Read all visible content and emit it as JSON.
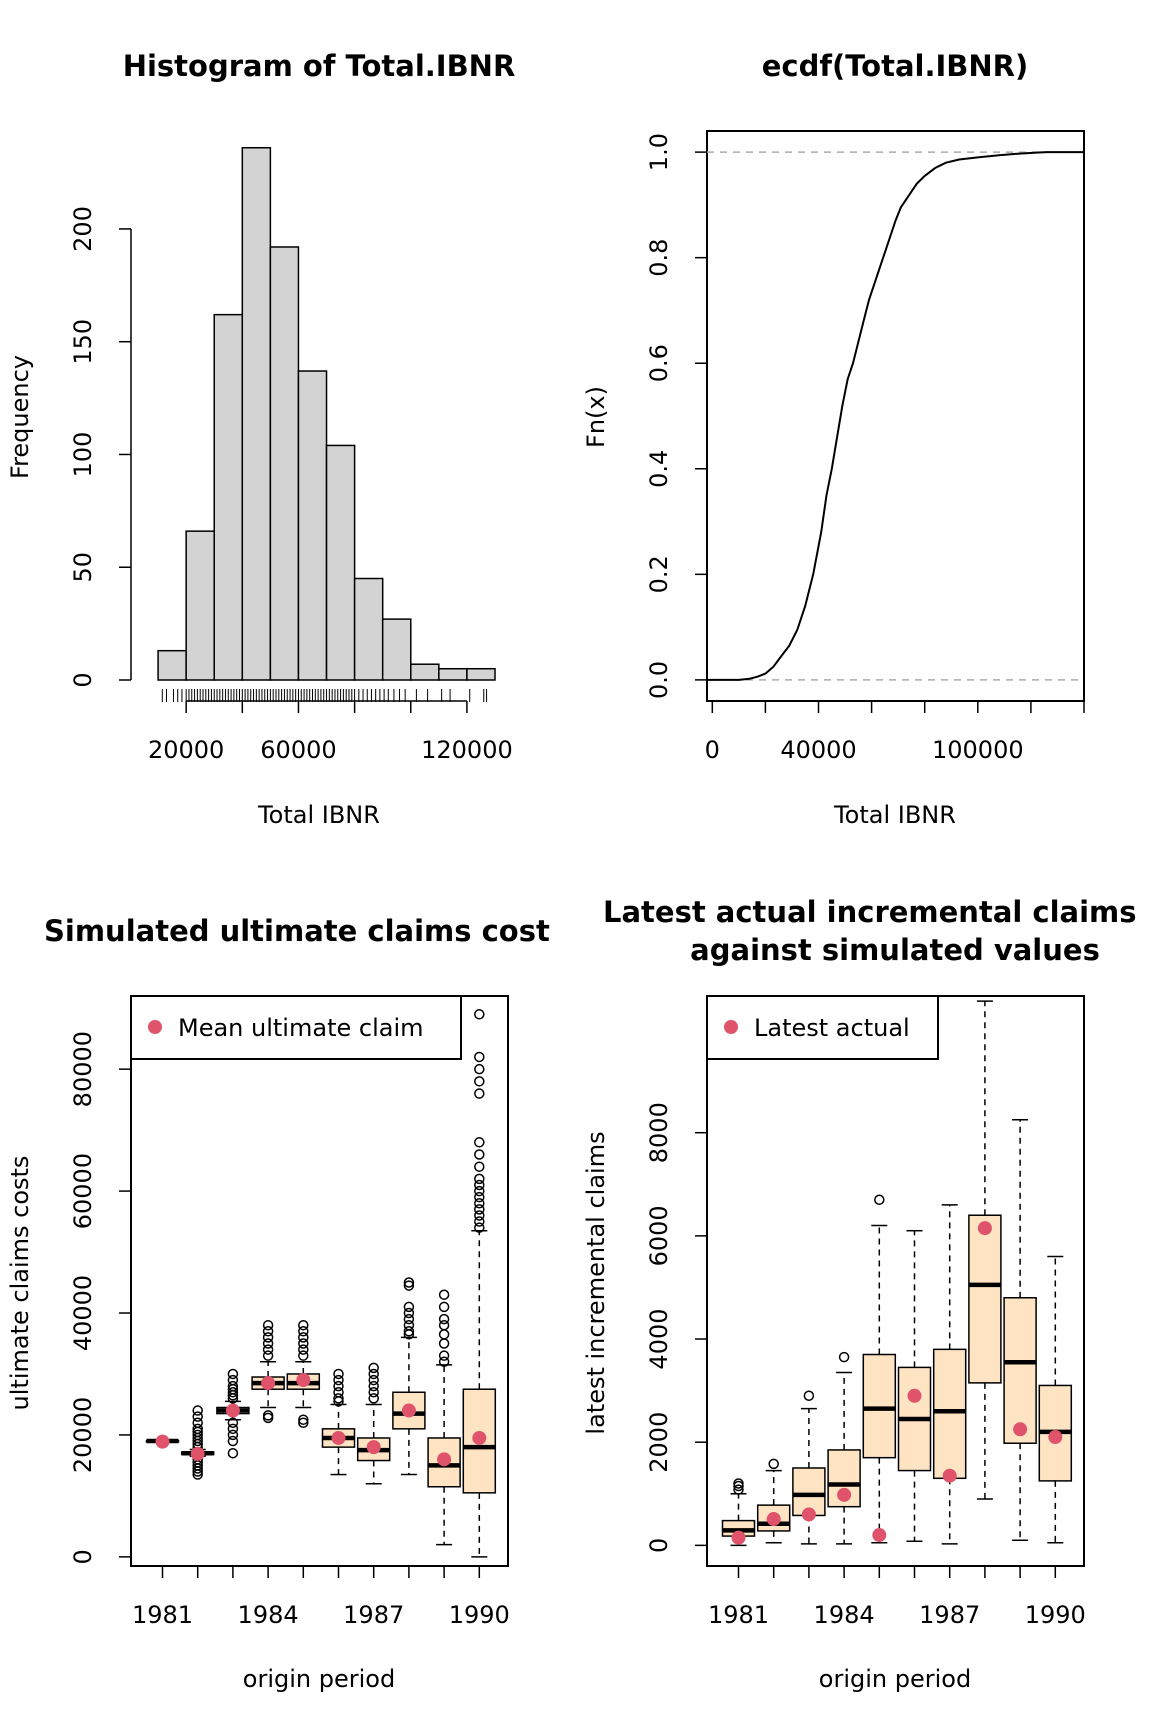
{
  "chart_data": [
    {
      "type": "histogram",
      "title": "Histogram of Total.IBNR",
      "xlabel": "Total IBNR",
      "ylabel": "Frequency",
      "xticks": [
        20000,
        60000,
        120000
      ],
      "yticks": [
        0,
        50,
        100,
        150,
        200
      ],
      "xlim": [
        0,
        130000
      ],
      "ylim": [
        0,
        235
      ],
      "bins": [
        {
          "from": 10000,
          "to": 20000,
          "count": 13
        },
        {
          "from": 20000,
          "to": 30000,
          "count": 66
        },
        {
          "from": 30000,
          "to": 40000,
          "count": 162
        },
        {
          "from": 40000,
          "to": 50000,
          "count": 236
        },
        {
          "from": 50000,
          "to": 60000,
          "count": 192
        },
        {
          "from": 60000,
          "to": 70000,
          "count": 137
        },
        {
          "from": 70000,
          "to": 80000,
          "count": 104
        },
        {
          "from": 80000,
          "to": 90000,
          "count": 45
        },
        {
          "from": 90000,
          "to": 100000,
          "count": 27
        },
        {
          "from": 100000,
          "to": 110000,
          "count": 7
        },
        {
          "from": 110000,
          "to": 120000,
          "count": 5
        },
        {
          "from": 120000,
          "to": 130000,
          "count": 5
        }
      ],
      "rug": [
        11500,
        13000,
        15500,
        17000,
        18500,
        20000,
        21000,
        22000,
        23000,
        24000,
        25000,
        26000,
        27000,
        28000,
        29000,
        30000,
        31000,
        32000,
        33000,
        34000,
        35000,
        36000,
        37000,
        38000,
        39000,
        40000,
        41000,
        42000,
        43000,
        44000,
        45000,
        46000,
        47000,
        48000,
        49000,
        50000,
        51000,
        52000,
        53000,
        54000,
        55000,
        56000,
        57000,
        58000,
        59000,
        60000,
        61000,
        62000,
        63000,
        64000,
        65000,
        66000,
        67000,
        68000,
        69000,
        70000,
        71000,
        72000,
        73000,
        74000,
        75000,
        76000,
        77000,
        78000,
        79000,
        80000,
        81500,
        83000,
        84500,
        86000,
        87500,
        89000,
        90500,
        92000,
        94000,
        96000,
        98000,
        102000,
        106000,
        111000,
        114000,
        121000,
        126000,
        127000
      ]
    },
    {
      "type": "ecdf",
      "title": "ecdf(Total.IBNR)",
      "xlabel": "Total IBNR",
      "ylabel": "Fn(x)",
      "xticks": [
        0,
        40000,
        100000
      ],
      "xminor": [
        20000,
        60000,
        80000,
        120000,
        140000
      ],
      "yticks": [
        0.0,
        0.2,
        0.4,
        0.6,
        0.8,
        1.0
      ],
      "ytick_labels": [
        "0.0",
        "0.2",
        "0.4",
        "0.6",
        "0.8",
        "1.0"
      ],
      "xlim": [
        -2000,
        140000
      ],
      "ylim": [
        -0.04,
        1.04
      ],
      "points": [
        [
          -2000,
          0
        ],
        [
          10000,
          0
        ],
        [
          14000,
          0.002
        ],
        [
          17000,
          0.006
        ],
        [
          20000,
          0.012
        ],
        [
          23000,
          0.025
        ],
        [
          26000,
          0.045
        ],
        [
          29000,
          0.065
        ],
        [
          32000,
          0.095
        ],
        [
          35000,
          0.14
        ],
        [
          38000,
          0.2
        ],
        [
          41000,
          0.28
        ],
        [
          43000,
          0.35
        ],
        [
          45000,
          0.4
        ],
        [
          47000,
          0.46
        ],
        [
          49000,
          0.52
        ],
        [
          51000,
          0.57
        ],
        [
          53000,
          0.6
        ],
        [
          55000,
          0.64
        ],
        [
          57000,
          0.68
        ],
        [
          59000,
          0.72
        ],
        [
          61000,
          0.75
        ],
        [
          63000,
          0.78
        ],
        [
          65000,
          0.81
        ],
        [
          67000,
          0.84
        ],
        [
          69000,
          0.87
        ],
        [
          71000,
          0.895
        ],
        [
          73000,
          0.91
        ],
        [
          75000,
          0.925
        ],
        [
          77000,
          0.94
        ],
        [
          80000,
          0.955
        ],
        [
          84000,
          0.97
        ],
        [
          88000,
          0.98
        ],
        [
          93000,
          0.986
        ],
        [
          100000,
          0.99
        ],
        [
          108000,
          0.994
        ],
        [
          115000,
          0.997
        ],
        [
          122000,
          0.999
        ],
        [
          126000,
          1.0
        ],
        [
          140000,
          1.0
        ]
      ],
      "reference_lines": [
        0,
        1
      ]
    },
    {
      "type": "boxplot",
      "title": "Simulated ultimate claims cost",
      "xlabel": "origin period",
      "ylabel": "ultimate claims costs",
      "legend": {
        "label": "Mean ultimate claim",
        "position": "top-left"
      },
      "box_fill": "#FFE4C4",
      "mean_color": "#DF536B",
      "categories": [
        1981,
        1982,
        1983,
        1984,
        1985,
        1986,
        1987,
        1988,
        1989,
        1990
      ],
      "xtick_labels": [
        "1981",
        "1984",
        "1987",
        "1990"
      ],
      "yticks": [
        0,
        20000,
        40000,
        60000,
        80000
      ],
      "ylim": [
        -1500,
        92000
      ],
      "boxes": [
        {
          "min": 18850,
          "q1": 18950,
          "median": 19000,
          "q3": 19050,
          "max": 19150,
          "mean": 18900,
          "outliers": []
        },
        {
          "min": 16500,
          "q1": 16800,
          "median": 17000,
          "q3": 17200,
          "max": 17600,
          "mean": 16900,
          "outliers": [
            13500,
            14000,
            14500,
            15000,
            15500,
            16000,
            18000,
            18500,
            19000,
            19500,
            20000,
            20500,
            21000,
            22000,
            23000,
            24000
          ]
        },
        {
          "min": 22500,
          "q1": 23500,
          "median": 24000,
          "q3": 24500,
          "max": 25500,
          "mean": 24000,
          "outliers": [
            17000,
            19000,
            20000,
            21000,
            22000,
            26000,
            26500,
            27000,
            27500,
            28000,
            29000,
            30000
          ]
        },
        {
          "min": 24500,
          "q1": 27500,
          "median": 28500,
          "q3": 29500,
          "max": 32000,
          "mean": 28500,
          "outliers": [
            22800,
            23200,
            33000,
            34000,
            35000,
            36000,
            37000,
            38000
          ]
        },
        {
          "min": 24500,
          "q1": 27500,
          "median": 28500,
          "q3": 30000,
          "max": 32000,
          "mean": 29000,
          "outliers": [
            22000,
            22500,
            33000,
            34000,
            35000,
            36000,
            37000,
            38000
          ]
        },
        {
          "min": 13500,
          "q1": 18000,
          "median": 19500,
          "q3": 21000,
          "max": 25000,
          "mean": 19500,
          "outliers": [
            25500,
            26000,
            27000,
            28000,
            29000,
            30000
          ]
        },
        {
          "min": 12000,
          "q1": 15800,
          "median": 17500,
          "q3": 19500,
          "max": 25000,
          "mean": 18000,
          "outliers": [
            26000,
            27000,
            28000,
            29000,
            30000,
            31000
          ]
        },
        {
          "min": 13500,
          "q1": 21000,
          "median": 23500,
          "q3": 27000,
          "max": 36000,
          "mean": 24000,
          "outliers": [
            36500,
            37000,
            38000,
            39000,
            40000,
            41000,
            44500,
            45000
          ]
        },
        {
          "min": 2000,
          "q1": 11500,
          "median": 15000,
          "q3": 19500,
          "max": 31500,
          "mean": 16000,
          "outliers": [
            32000,
            33000,
            35000,
            36500,
            38000,
            39000,
            41000,
            43000
          ]
        },
        {
          "min": 0,
          "q1": 10500,
          "median": 18000,
          "q3": 27500,
          "max": 53500,
          "mean": 19500,
          "outliers": [
            54000,
            55000,
            56000,
            57000,
            58000,
            59000,
            60000,
            61000,
            62000,
            64000,
            66000,
            68000,
            76000,
            78000,
            80000,
            82000,
            89000
          ]
        }
      ]
    },
    {
      "type": "boxplot",
      "title": "Latest actual incremental claims",
      "subtitle": "against simulated values",
      "xlabel": "origin period",
      "ylabel": "latest incremental claims",
      "legend": {
        "label": "Latest actual",
        "position": "top-left"
      },
      "box_fill": "#FFE4C4",
      "mean_color": "#DF536B",
      "categories": [
        1981,
        1982,
        1983,
        1984,
        1985,
        1986,
        1987,
        1988,
        1989,
        1990
      ],
      "xtick_labels": [
        "1981",
        "1984",
        "1987",
        "1990"
      ],
      "yticks": [
        0,
        2000,
        4000,
        6000,
        8000
      ],
      "ylim": [
        -400,
        10650
      ],
      "boxes": [
        {
          "min": 0,
          "q1": 180,
          "median": 290,
          "q3": 480,
          "max": 1000,
          "actual": 150,
          "outliers": [
            1080,
            1150,
            1200
          ]
        },
        {
          "min": 50,
          "q1": 280,
          "median": 420,
          "q3": 780,
          "max": 1450,
          "actual": 510,
          "outliers": [
            1580
          ]
        },
        {
          "min": 30,
          "q1": 580,
          "median": 980,
          "q3": 1500,
          "max": 2650,
          "actual": 600,
          "outliers": [
            2900
          ]
        },
        {
          "min": 30,
          "q1": 750,
          "median": 1180,
          "q3": 1850,
          "max": 3350,
          "actual": 980,
          "outliers": [
            3650
          ]
        },
        {
          "min": 50,
          "q1": 1700,
          "median": 2650,
          "q3": 3700,
          "max": 6200,
          "actual": 200,
          "outliers": [
            6700
          ]
        },
        {
          "min": 80,
          "q1": 1450,
          "median": 2450,
          "q3": 3450,
          "max": 6100,
          "actual": 2900,
          "outliers": []
        },
        {
          "min": 30,
          "q1": 1300,
          "median": 2600,
          "q3": 3800,
          "max": 6600,
          "actual": 1350,
          "outliers": []
        },
        {
          "min": 900,
          "q1": 3150,
          "median": 5050,
          "q3": 6400,
          "max": 10550,
          "actual": 6150,
          "outliers": []
        },
        {
          "min": 100,
          "q1": 1980,
          "median": 3550,
          "q3": 4800,
          "max": 8250,
          "actual": 2250,
          "outliers": []
        },
        {
          "min": 50,
          "q1": 1250,
          "median": 2200,
          "q3": 3100,
          "max": 5600,
          "actual": 2100,
          "outliers": []
        }
      ]
    }
  ]
}
